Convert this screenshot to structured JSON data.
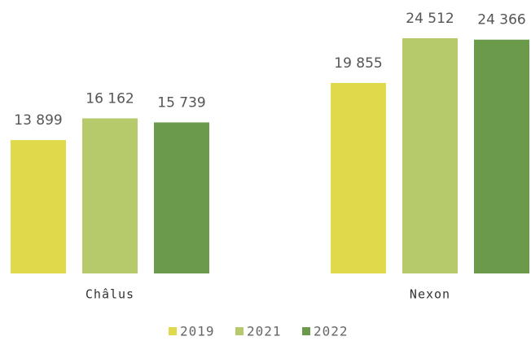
{
  "chart_data": {
    "type": "bar",
    "categories": [
      "Châlus",
      "Nexon"
    ],
    "series": [
      {
        "name": "2019",
        "color": "#e1d94c",
        "values": [
          13899,
          19855
        ],
        "value_labels": [
          "13 899",
          "19 855"
        ]
      },
      {
        "name": "2021",
        "color": "#b6ca6b",
        "values": [
          16162,
          24512
        ],
        "value_labels": [
          "16 162",
          "24 512"
        ]
      },
      {
        "name": "2022",
        "color": "#6b9a4b",
        "values": [
          15739,
          24366
        ],
        "value_labels": [
          "15 739",
          "24 366"
        ]
      }
    ]
  }
}
